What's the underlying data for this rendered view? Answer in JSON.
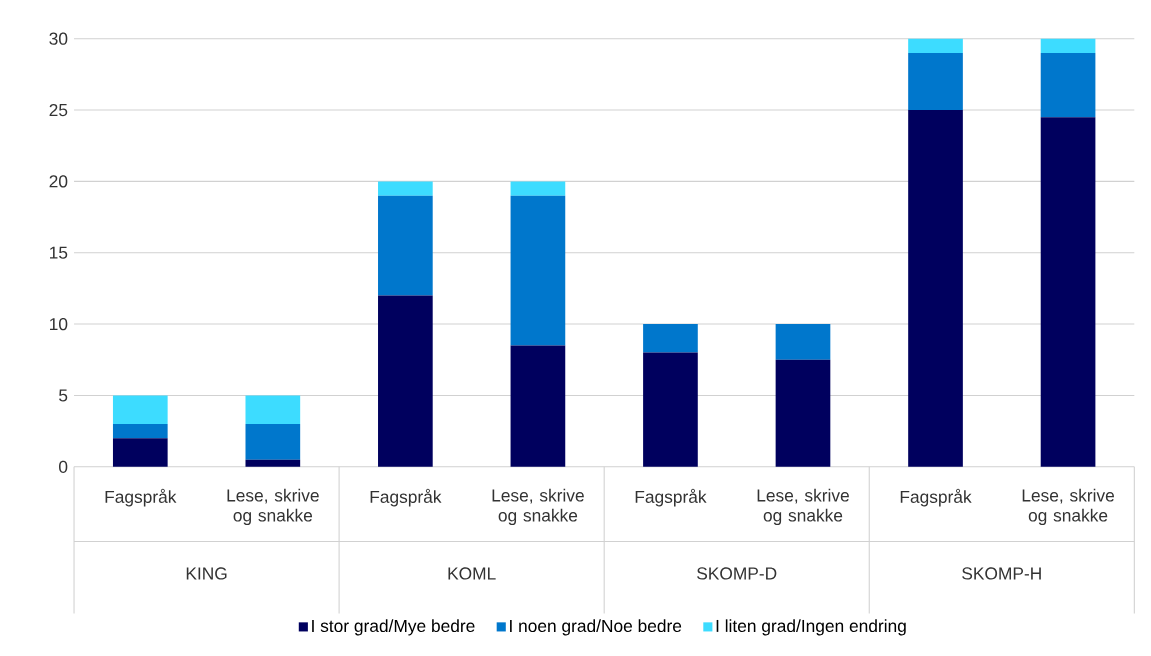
{
  "chart_data": {
    "type": "bar",
    "stacked": true,
    "categories": [
      "Fagspråk",
      "Lese, skrive og snakke",
      "Fagspråk",
      "Lese, skrive og snakke",
      "Fagspråk",
      "Lese, skrive og snakke",
      "Fagspråk",
      "Lese, skrive og snakke"
    ],
    "annotations": [
      "KING",
      "KOML",
      "SKOMP-D",
      "SKOMP-H"
    ],
    "series": [
      {
        "name": "I stor grad/Mye bedre",
        "color": "#00005e",
        "values": [
          2,
          0.5,
          12,
          8.5,
          8,
          7.5,
          25,
          24.5
        ]
      },
      {
        "name": "I noen grad/Noe bedre",
        "color": "#0077cc",
        "values": [
          1,
          2.5,
          7,
          10.5,
          2,
          2.5,
          4,
          4.5
        ]
      },
      {
        "name": "I liten grad/Ingen endring",
        "color": "#3ddcff",
        "values": [
          2,
          2,
          1,
          1,
          null,
          null,
          1,
          1
        ]
      }
    ],
    "ylim": [
      0,
      30
    ],
    "yticks": [
      0,
      5,
      10,
      15,
      20,
      25,
      30
    ],
    "grid": "y",
    "legend": "bottom"
  }
}
